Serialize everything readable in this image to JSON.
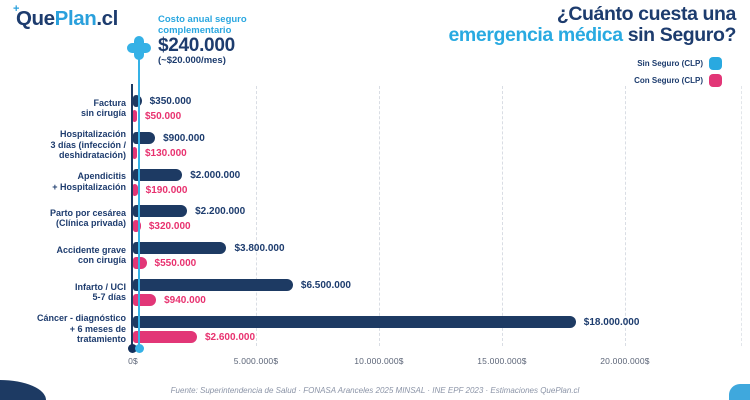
{
  "logo": {
    "plus": "+",
    "que": "Que",
    "plan": "Plan",
    "suffix": ".cl"
  },
  "title": {
    "line1": "¿Cuánto cuesta una",
    "line2_highlight": "emergencia médica",
    "line2_rest": " sin Seguro?"
  },
  "callout": {
    "label": "Costo anual seguro complementario",
    "amount": "$240.000",
    "per_month": "(~$20.000/mes)"
  },
  "legend": [
    {
      "label": "Sin Seguro (CLP)",
      "color": "#29a9e0"
    },
    {
      "label": "Con Seguro (CLP)",
      "color": "#e23677"
    }
  ],
  "colors": {
    "navy": "#1d3a63",
    "cyan": "#29a9e0",
    "pink": "#e23677",
    "gridline": "#d9dde4"
  },
  "chart_data": {
    "type": "bar",
    "orientation": "horizontal",
    "title": "¿Cuánto cuesta una emergencia médica sin Seguro?",
    "categories": [
      "Factura\nsin cirugía",
      "Hospitalización\n3 días (infección /\ndeshidratación)",
      "Apendicitis\n+ Hospitalización",
      "Parto por cesárea\n(Clínica privada)",
      "Accidente grave\ncon cirugía",
      "Infarto / UCI\n5-7 días",
      "Cáncer - diagnóstico\n+ 6 meses de\ntratamiento"
    ],
    "series": [
      {
        "name": "Sin Seguro (CLP)",
        "color": "#1d3a63",
        "label_color": "#1d3c6e",
        "values": [
          350000,
          900000,
          2000000,
          2200000,
          3800000,
          6500000,
          18000000
        ],
        "labels": [
          "$350.000",
          "$900.000",
          "$2.000.000",
          "$2.200.000",
          "$3.800.000",
          "$6.500.000",
          "$18.000.000"
        ]
      },
      {
        "name": "Con Seguro (CLP)",
        "color": "#e23677",
        "label_color": "#e8316f",
        "values": [
          50000,
          130000,
          190000,
          320000,
          550000,
          940000,
          2600000
        ],
        "labels": [
          "$50.000",
          "$130.000",
          "$190.000",
          "$320.000",
          "$550.000",
          "$940.000",
          "$2.600.000"
        ]
      }
    ],
    "x_ticks": [
      "0$",
      "5.000.000$",
      "10.000.000$",
      "15.000.000$",
      "20.000.000$"
    ],
    "x_tick_values": [
      0,
      5000000,
      10000000,
      15000000,
      20000000
    ],
    "xlim": [
      0,
      20000000
    ],
    "grid": "vertical-dashed",
    "legend_position": "top-right",
    "annotation_marker": {
      "value": 240000,
      "label": "$240.000",
      "color": "#35b1e6"
    }
  },
  "footer": "Fuente: Superintendencia de Salud · FONASA Aranceles 2025 MINSAL · INE EPF 2023 · Estimaciones QuePlan.cl"
}
